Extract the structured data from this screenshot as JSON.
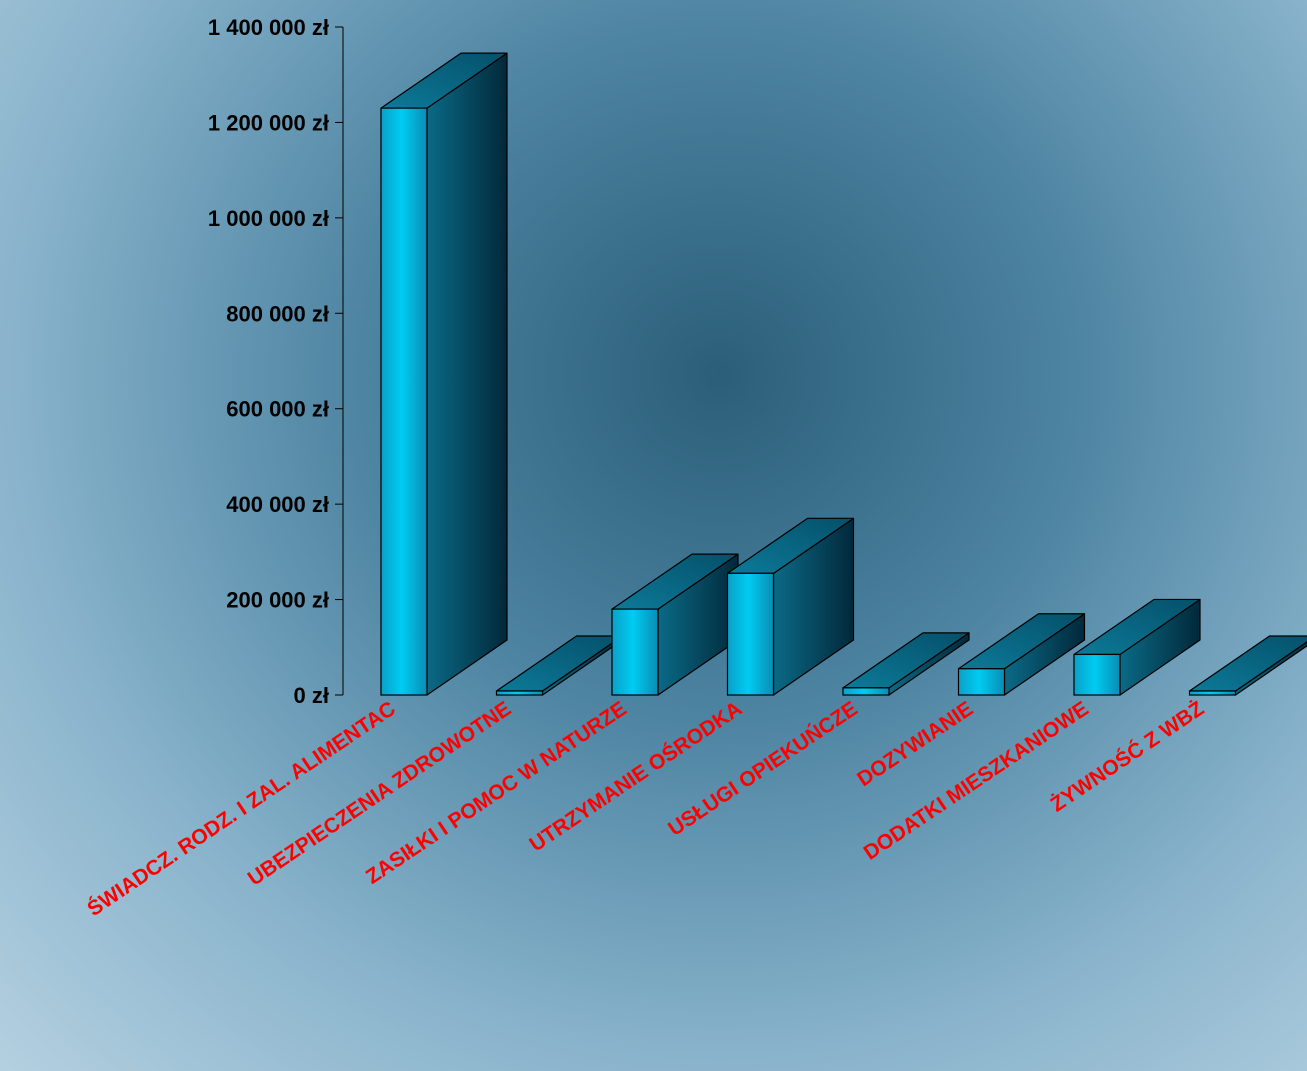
{
  "chart_data": {
    "type": "bar",
    "style": "3d-column",
    "categories": [
      "ŚWIADCZ. RODZ. I ZAL. ALIMENTAC",
      "UBEZPIECZENIA ZDROWOTNE",
      "ZASIŁKI I POMOC W NATURZE",
      "UTRZYMANIE OŚRODKA",
      "USŁUGI OPIEKUŃCZE",
      "DOZYWIANIE",
      "DODATKI MIESZKANIOWE",
      "ŻYWNOŚĆ Z WBŻ"
    ],
    "values": [
      1230000,
      5000,
      180000,
      255000,
      15000,
      55000,
      85000,
      5000
    ],
    "ylim": [
      0,
      1400000
    ],
    "yticks": [
      0,
      200000,
      400000,
      600000,
      800000,
      1000000,
      1200000,
      1400000
    ],
    "ytick_labels": [
      "0 zł",
      "200 000 zł",
      "400 000 zł",
      "600 000 zł",
      "800 000 zł",
      "1 000 000 zł",
      "1 200 000 zł",
      "1 400 000 zł"
    ],
    "grid": false,
    "legend": "none",
    "colors": {
      "bar_front": "#00c8f0",
      "bar_side": "#04566e",
      "bar_top": "#0a6f8c",
      "category_label": "#ff0000",
      "tick_label": "#000000"
    }
  }
}
